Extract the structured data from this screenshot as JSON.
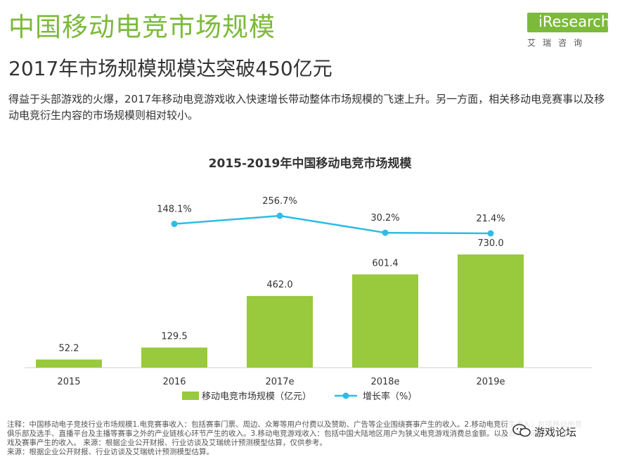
{
  "header": {
    "title": "中国移动电竞市场规模",
    "subtitle": "2017年市场规模规模达突破450亿元",
    "description": "得益于头部游戏的火爆，2017年移动电竞游戏收入快速增长带动整体市场规模的飞速上升。另一方面，相关移动电竞赛事以及移动电竞衍生内容的市场规模则相对较小。"
  },
  "logo": {
    "text": "iResearch",
    "sub": "艾瑞咨询"
  },
  "colors": {
    "accent": "#7cba3a",
    "bar": "#99c93d",
    "line": "#2ebce4",
    "text": "#333333"
  },
  "chart_data": {
    "type": "bar",
    "title": "2015-2019年中国移动电竞市场规模",
    "categories": [
      "2015",
      "2016",
      "2017e",
      "2018e",
      "2019e"
    ],
    "series": [
      {
        "name": "移动电竞市场规模（亿元）",
        "type": "bar",
        "values": [
          52.2,
          129.5,
          462.0,
          601.4,
          730.0
        ],
        "labels": [
          "52.2",
          "129.5",
          "462.0",
          "601.4",
          "730.0"
        ]
      },
      {
        "name": "增长率（%）",
        "type": "line",
        "x": [
          "2016",
          "2017e",
          "2018e",
          "2019e"
        ],
        "values": [
          148.1,
          256.7,
          30.2,
          21.4
        ],
        "labels": [
          "148.1%",
          "256.7%",
          "30.2%",
          "21.4%"
        ]
      }
    ],
    "legend": "bottom",
    "grid": false
  },
  "notes": [
    "注释：中国移动电子竞技行业市场规模1.电竞赛事收入：包括赛事门票、周边、众筹等用户付费以及赞助、广告等企业围绕赛事产生的收入。2.移动电竞衍生收入：包括移动电竞",
    "俱乐部及选手、直播平台及主播等赛事之外的产业链核心环节产生的收入。3.移动电竞游戏收入：包括中国大陆地区用户为狭义电竞游戏消费总金额。以及游戏厂商围绕电竞",
    "戏及赛事产生的收入。 来源：根据企业公开财报、行业访谈及艾瑞统计预测模型估算，仅供参考。",
    "来源：根据企业公开财报、行业访谈及艾瑞统计预测模型估算。"
  ],
  "watermark": {
    "text": "游戏论坛"
  }
}
